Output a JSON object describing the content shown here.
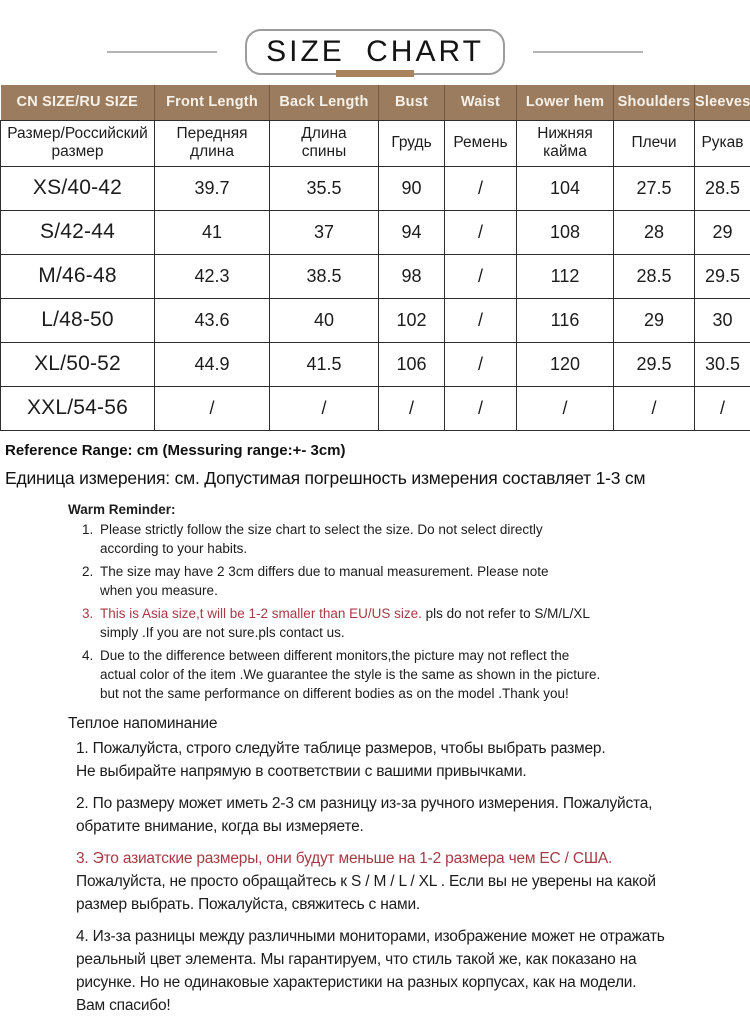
{
  "title": "SIZE CHART",
  "colors": {
    "header_bg": "#9c7c5f",
    "accent_bar": "#a9835d",
    "alert_red": "#a83a45",
    "table_border": "#2e2e2e",
    "side_line_gray": "#b4b4b4"
  },
  "table": {
    "header_en": [
      "CN SIZE/RU SIZE",
      "Front Length",
      "Back Length",
      "Bust",
      "Waist",
      "Lower hem",
      "Shoulders",
      "Sleeves"
    ],
    "header_ru": [
      "Размер/Российский\nразмер",
      "Передняя\nдлина",
      "Длина\nспины",
      "Грудь",
      "Ремень",
      "Нижняя\nкайма",
      "Плечи",
      "Рукав"
    ],
    "rows": [
      {
        "size": "XS/40-42",
        "values": [
          "39.7",
          "35.5",
          "90",
          "/",
          "104",
          "27.5",
          "28.5"
        ]
      },
      {
        "size": "S/42-44",
        "values": [
          "41",
          "37",
          "94",
          "/",
          "108",
          "28",
          "29"
        ]
      },
      {
        "size": "M/46-48",
        "values": [
          "42.3",
          "38.5",
          "98",
          "/",
          "112",
          "28.5",
          "29.5"
        ]
      },
      {
        "size": "L/48-50",
        "values": [
          "43.6",
          "40",
          "102",
          "/",
          "116",
          "29",
          "30"
        ]
      },
      {
        "size": "XL/50-52",
        "values": [
          "44.9",
          "41.5",
          "106",
          "/",
          "120",
          "29.5",
          "30.5"
        ]
      },
      {
        "size": "XXL/54-56",
        "values": [
          "/",
          "/",
          "/",
          "/",
          "/",
          "/",
          "/"
        ]
      }
    ]
  },
  "notes": {
    "reference_en": "Reference Range: cm (Messuring range:+- 3cm)",
    "reference_ru": "Единица измерения: см. Допустимая погрешность измерения составляет 1-3 см",
    "warm_reminder_en": {
      "title": "Warm Reminder:",
      "items": [
        {
          "num": "1.",
          "num_red": false,
          "segments": [
            {
              "t": "Please strictly follow the size chart to select the size. Do not select directly\naccording to your habits.",
              "red": false
            }
          ]
        },
        {
          "num": "2.",
          "num_red": false,
          "segments": [
            {
              "t": "The size may have 2 3cm differs due to manual measurement. Please note\nwhen you measure.",
              "red": false
            }
          ]
        },
        {
          "num": "3.",
          "num_red": true,
          "segments": [
            {
              "t": "This is Asia size,t will be 1-2 smaller than EU/US size.",
              "red": true
            },
            {
              "t": " pls do not refer to S/M/L/XL\nsimply .If you are not sure.pls contact us.",
              "red": false
            }
          ]
        },
        {
          "num": "4.",
          "num_red": false,
          "segments": [
            {
              "t": "Due to the difference between different monitors,the picture may not reflect the\nactual color of the item .We guarantee the style is the same as shown in the picture.\nbut not the same performance on different bodies as on the model .Thank you!",
              "red": false
            }
          ]
        }
      ]
    },
    "warm_reminder_ru": {
      "title": "Теплое напоминание",
      "items": [
        {
          "segments": [
            {
              "t": "1. Пожалуйста, строго следуйте таблице размеров, чтобы выбрать размер.\nНе выбирайте напрямую в соответствии с вашими привычками.",
              "red": false
            }
          ]
        },
        {
          "segments": [
            {
              "t": "2. По размеру может иметь 2-3 см разницу из-за ручного измерения. Пожалуйста,\nобратите внимание, когда вы измеряете.",
              "red": false
            }
          ]
        },
        {
          "segments": [
            {
              "t": "3. Это азиатские размеры, они будут меньше на 1-2 размера чем ЕС / США.",
              "red": true
            },
            {
              "t": "\nПожалуйста, не просто обращайтесь к S / M / L / XL . Если вы не уверены на какой\nразмер выбрать. Пожалуйста, свяжитесь с нами.",
              "red": false
            }
          ]
        },
        {
          "segments": [
            {
              "t": "4. Из-за разницы между различными мониторами, изображение может не отражать\nреальный цвет элемента. Мы гарантируем, что стиль такой же, как показано на\nрисунке. Но не одинаковые характеристики на разных корпусах, как на модели.\nВам спасибо!",
              "red": false
            }
          ]
        }
      ]
    }
  }
}
